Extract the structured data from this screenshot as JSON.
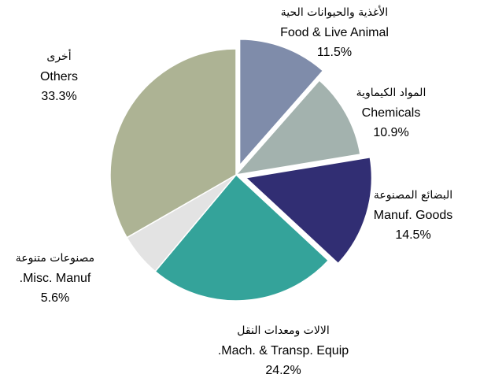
{
  "chart_data": {
    "type": "pie",
    "categories": [
      "Food & Live Animal",
      "Chemicals",
      "Manuf. Goods",
      ".Mach. & Transp. Equip",
      ".Misc. Manuf",
      "Others"
    ],
    "categories_ar": [
      "الأغذية والحيوانات الحية",
      "المواد الكيماوية",
      "البضائع المصنوعة",
      "الالات ومعدات النقل",
      "مصنوعات متنوعة",
      "أخرى"
    ],
    "values": [
      11.5,
      10.9,
      14.5,
      24.2,
      5.6,
      33.3
    ],
    "value_labels": [
      "11.5%",
      "10.9%",
      "14.5%",
      "24.2%",
      "5.6%",
      "33.3%"
    ],
    "colors": [
      "#7f8caa",
      "#a3b2ae",
      "#312e73",
      "#34a39a",
      "#e3e3e3",
      "#adb394"
    ],
    "explode": [
      true,
      false,
      true,
      false,
      false,
      false
    ]
  }
}
